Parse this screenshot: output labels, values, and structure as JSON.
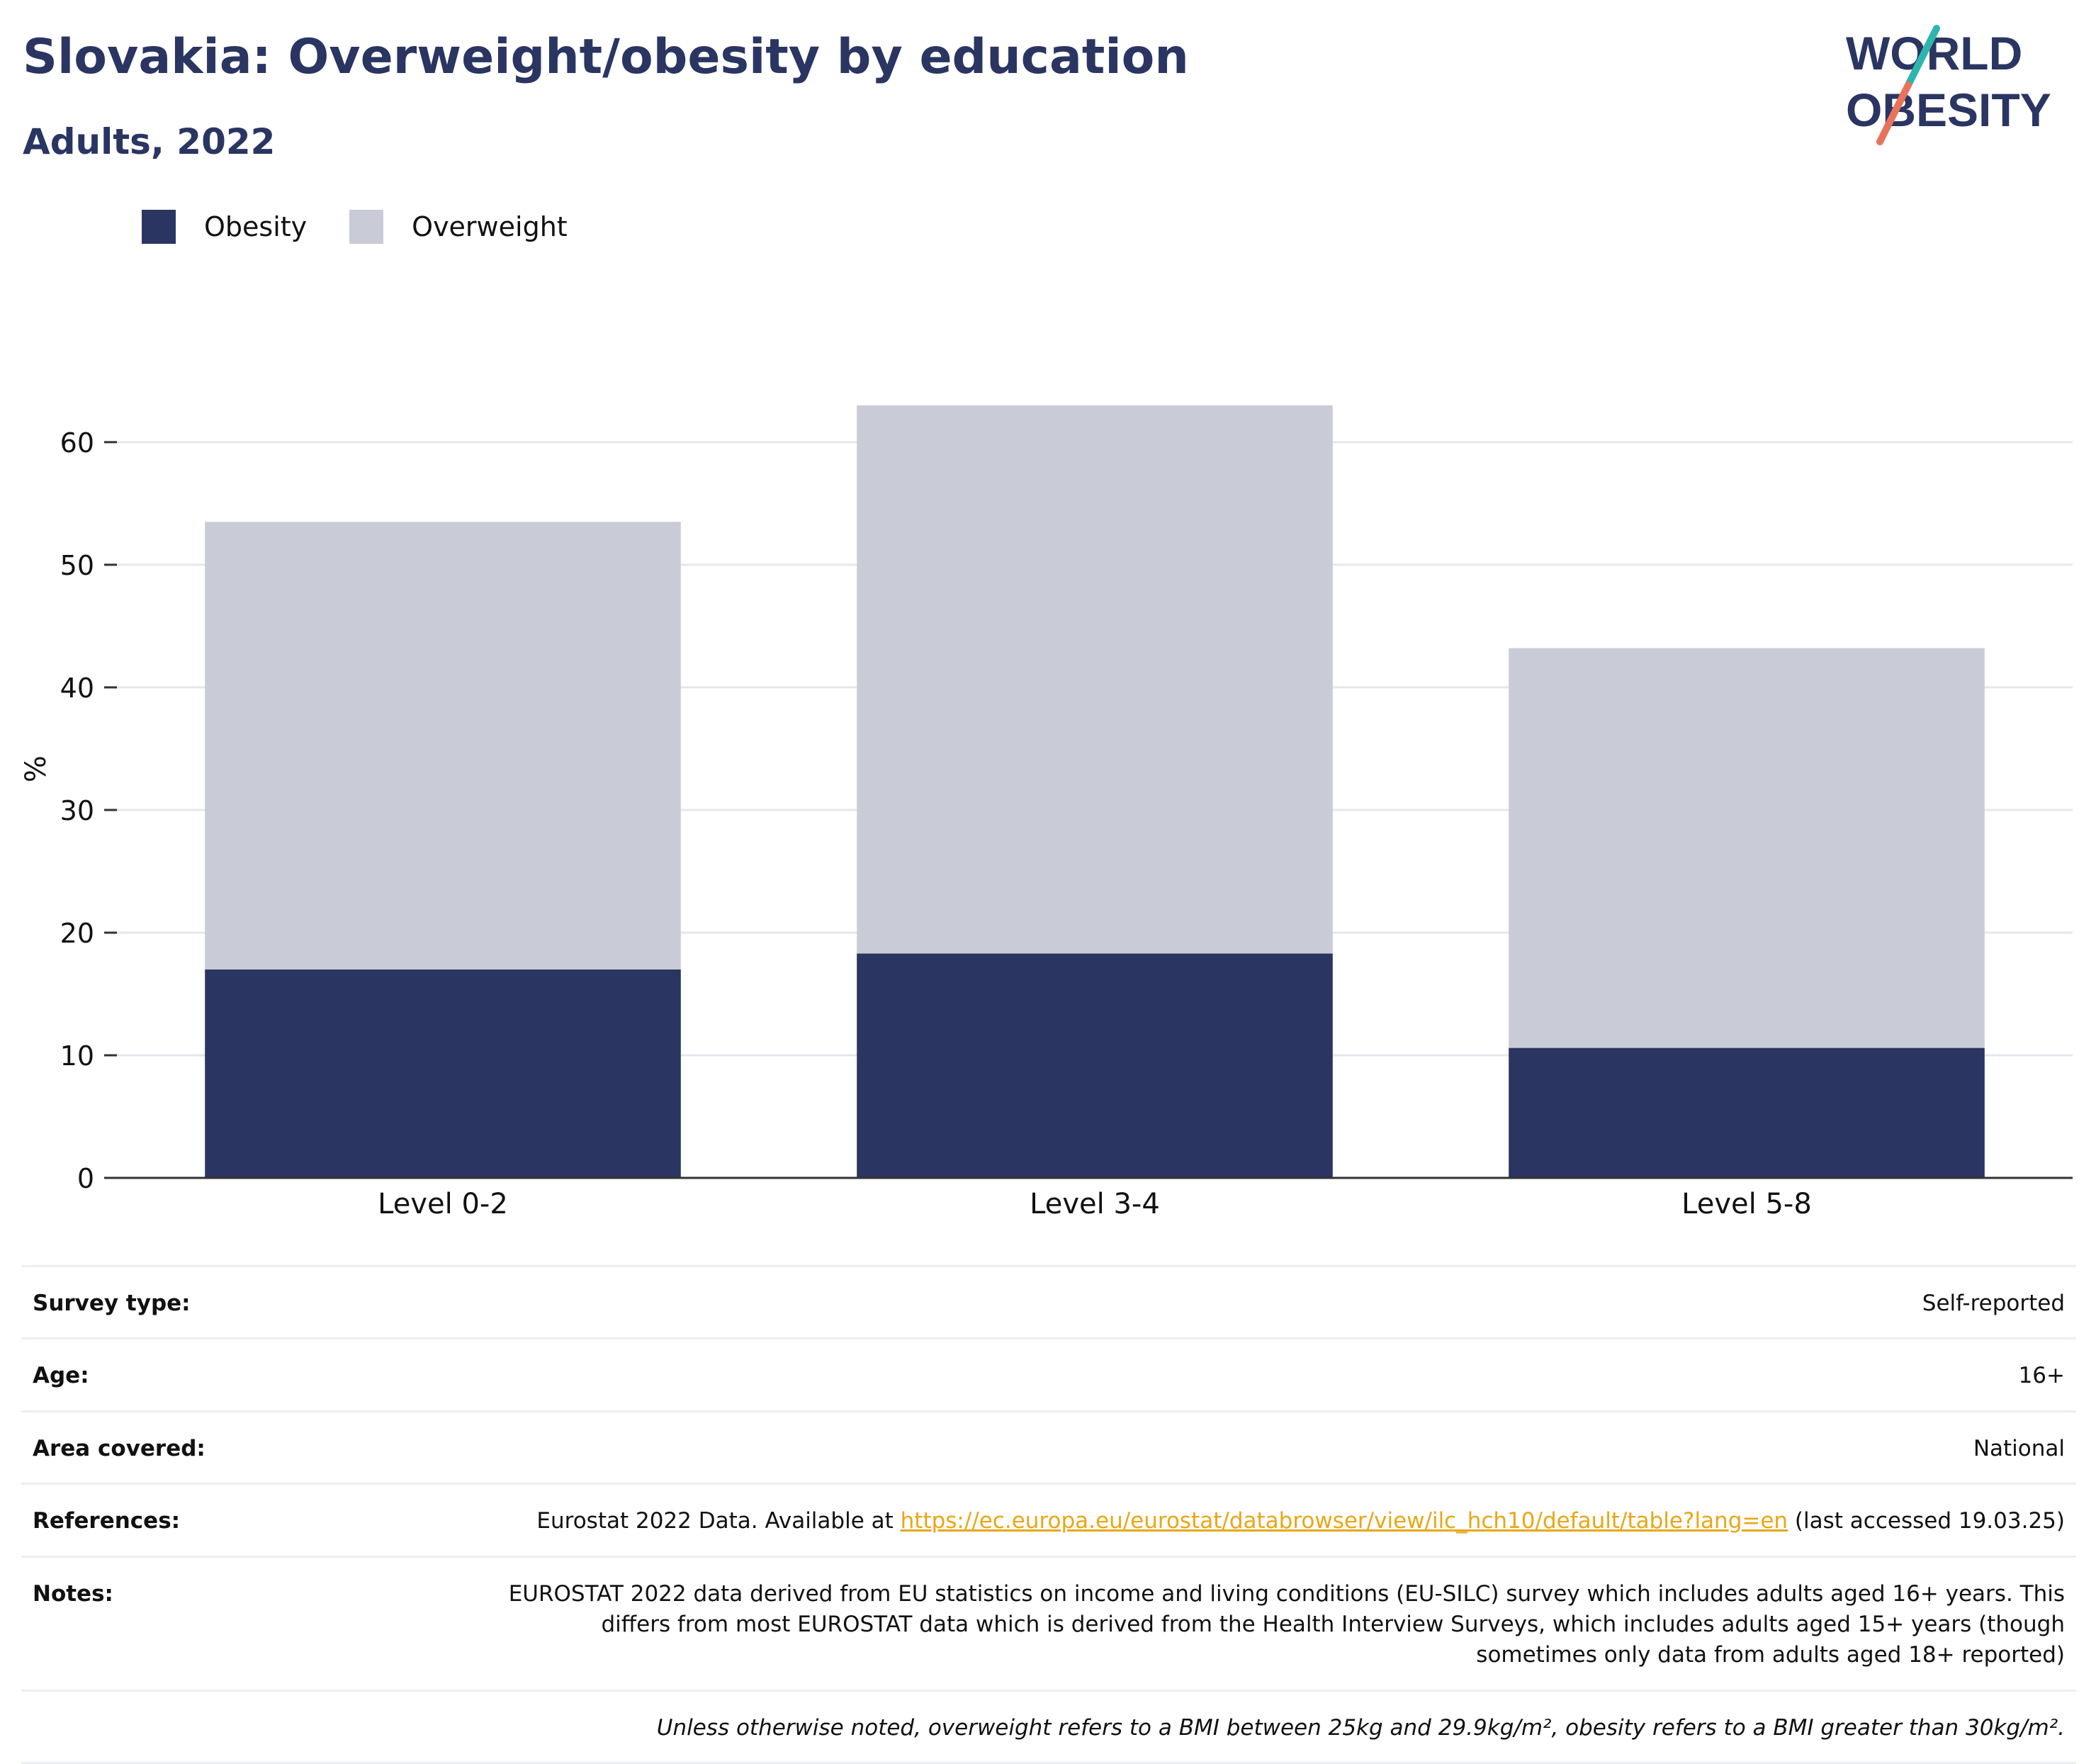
{
  "header": {
    "title": "Slovakia: Overweight/obesity by education",
    "subtitle": "Adults, 2022",
    "logo_line1": "WORLD",
    "logo_line2": "OBESITY"
  },
  "legend": [
    {
      "label": "Obesity",
      "color": "#2a3562"
    },
    {
      "label": "Overweight",
      "color": "#c9ccd7"
    }
  ],
  "chart_data": {
    "type": "bar",
    "stacked": true,
    "categories": [
      "Level 0-2",
      "Level 3-4",
      "Level 5-8"
    ],
    "series": [
      {
        "name": "Obesity",
        "color": "#2a3562",
        "values": [
          17.0,
          18.3,
          10.6
        ]
      },
      {
        "name": "Overweight",
        "color": "#c9ccd7",
        "values": [
          36.5,
          44.7,
          32.6
        ]
      }
    ],
    "totals": [
      53.5,
      63.0,
      43.2
    ],
    "ylabel": "%",
    "yticks": [
      0,
      10,
      20,
      30,
      40,
      50,
      60
    ],
    "ylim": [
      0,
      66
    ],
    "grid": true,
    "legend_position": "top-left"
  },
  "info": {
    "survey_type": {
      "label": "Survey type:",
      "value": "Self-reported"
    },
    "age": {
      "label": "Age:",
      "value": "16+"
    },
    "area": {
      "label": "Area covered:",
      "value": "National"
    },
    "references": {
      "label": "References:",
      "prefix": "Eurostat 2022 Data. Available at ",
      "link": "https://ec.europa.eu/eurostat/databrowser/view/ilc_hch10/default/table?lang=en",
      "suffix": " (last accessed 19.03.25)"
    },
    "notes": {
      "label": "Notes:",
      "value": "EUROSTAT 2022 data derived from EU statistics on income and living conditions (EU-SILC) survey which includes adults aged 16+ years. This differs from most EUROSTAT data which is derived from the Health Interview Surveys, which includes adults aged 15+ years (though sometimes only data from adults aged 18+ reported)"
    },
    "footnote": "Unless otherwise noted, overweight refers to a BMI between 25kg and 29.9kg/m², obesity refers to a BMI greater than 30kg/m²."
  }
}
